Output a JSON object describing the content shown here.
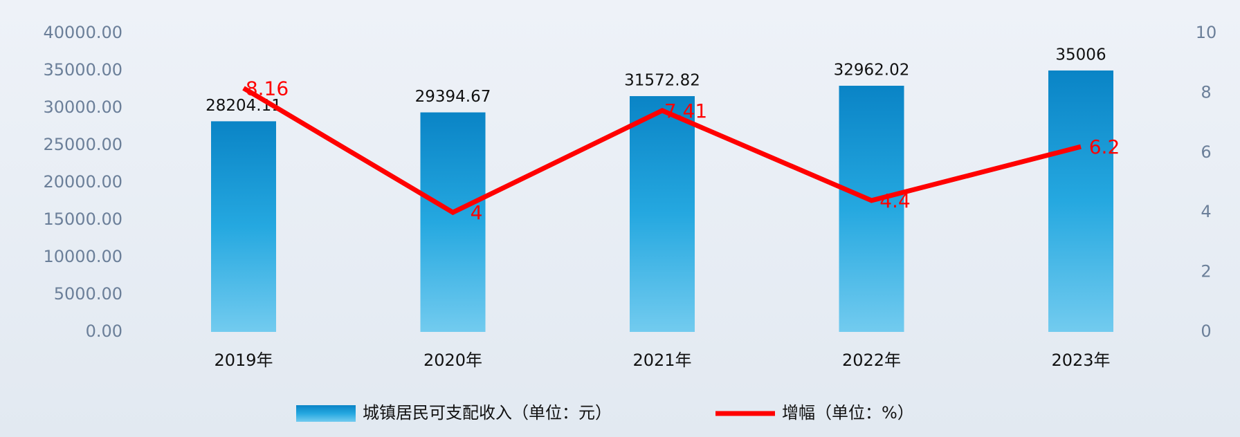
{
  "chart_data": {
    "type": "combo",
    "categories": [
      "2019年",
      "2020年",
      "2021年",
      "2022年",
      "2023年"
    ],
    "series": [
      {
        "name": "城镇居民可支配收入（单位：元）",
        "type": "bar",
        "axis": "y",
        "color": "#1592d4",
        "values": [
          28204.11,
          29394.67,
          31572.82,
          32962.02,
          35006
        ]
      },
      {
        "name": "增幅（单位：%）",
        "type": "line",
        "axis": "y2",
        "color": "#ff0000",
        "values": [
          8.16,
          4,
          7.41,
          4.4,
          6.2
        ]
      }
    ],
    "ylim": [
      0,
      40000
    ],
    "yticks": [
      {
        "value": 0,
        "label": "0.00"
      },
      {
        "value": 5000,
        "label": "5000.00"
      },
      {
        "value": 10000,
        "label": "10000.00"
      },
      {
        "value": 15000,
        "label": "15000.00"
      },
      {
        "value": 20000,
        "label": "20000.00"
      },
      {
        "value": 25000,
        "label": "25000.00"
      },
      {
        "value": 30000,
        "label": "30000.00"
      },
      {
        "value": 35000,
        "label": "35000.00"
      },
      {
        "value": 40000,
        "label": "40000.00"
      }
    ],
    "y2lim": [
      0,
      10
    ],
    "y2ticks": [
      0,
      2,
      4,
      6,
      8,
      10
    ],
    "legend": "bottom"
  }
}
